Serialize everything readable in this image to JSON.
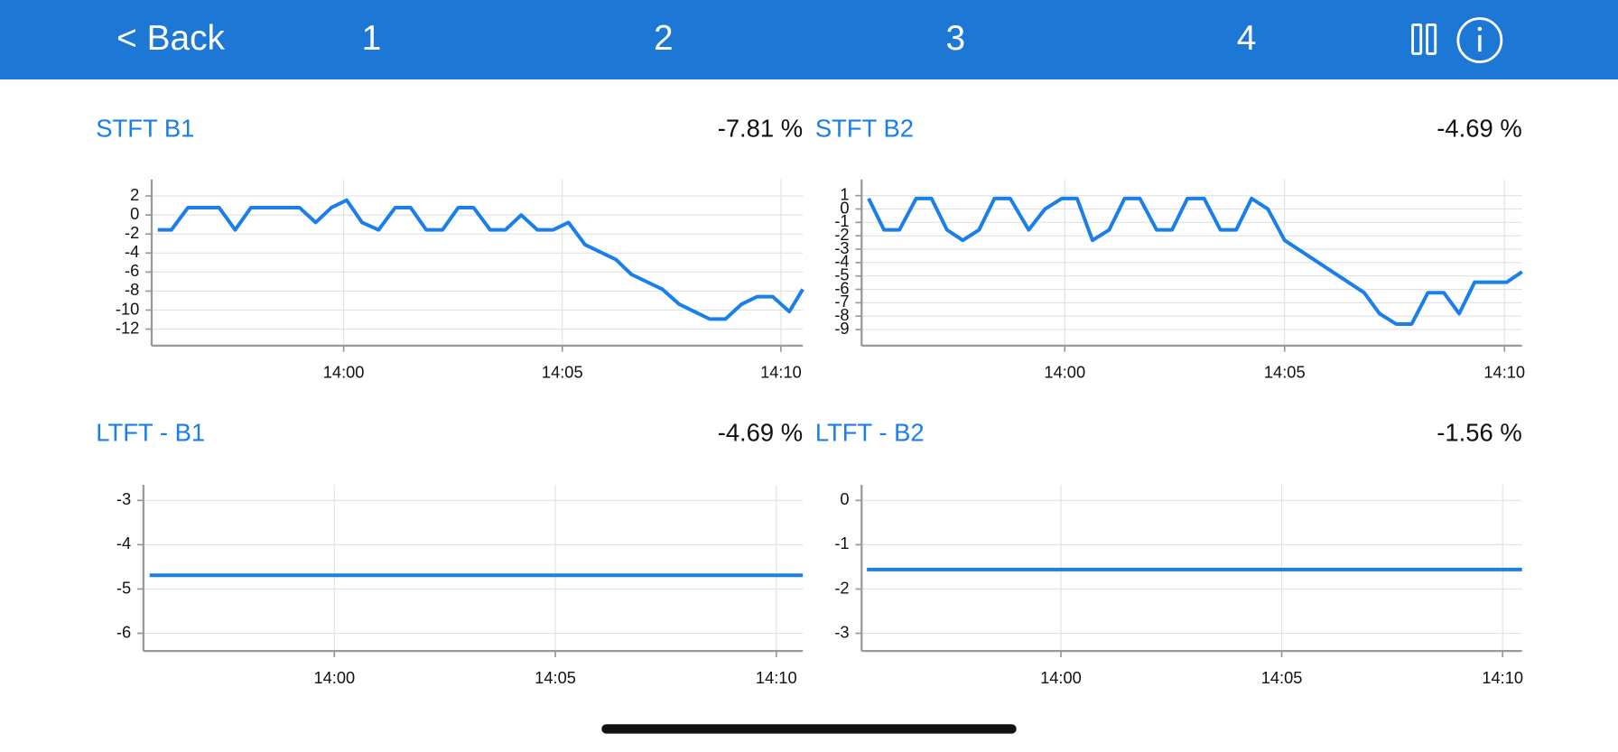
{
  "header": {
    "back": "< Back",
    "tabs": [
      "1",
      "2",
      "3",
      "4"
    ]
  },
  "chart_data": [
    {
      "type": "line",
      "title": "STFT B1",
      "current_value": "-7.81 %",
      "color": "#1a7fe8",
      "grid": true,
      "x": [
        -4.25,
        -3.94,
        -3.56,
        -2.85,
        -2.48,
        -2.12,
        -1.01,
        -0.64,
        -0.28,
        0.07,
        0.42,
        0.8,
        1.18,
        1.53,
        1.89,
        2.26,
        2.62,
        2.97,
        3.35,
        3.7,
        4.06,
        4.43,
        4.79,
        5.14,
        5.52,
        6.23,
        6.58,
        7.29,
        7.67,
        8.37,
        8.73,
        9.1,
        9.46,
        9.81,
        10.19,
        10.5
      ],
      "values": [
        -1.56,
        -1.56,
        0.78,
        0.78,
        -1.56,
        0.78,
        0.78,
        -0.78,
        0.78,
        1.56,
        -0.78,
        -1.56,
        0.78,
        0.78,
        -1.56,
        -1.56,
        0.78,
        0.78,
        -1.56,
        -1.56,
        0,
        -1.56,
        -1.56,
        -0.78,
        -3.13,
        -4.69,
        -6.25,
        -7.81,
        -9.38,
        -10.94,
        -10.94,
        -9.38,
        -8.59,
        -8.59,
        -10.16,
        -7.81
      ],
      "xlim": [
        -4.39,
        10.5
      ],
      "ylim": [
        -13.74,
        3.73
      ],
      "xticks": [
        {
          "value": 0,
          "label": "14:00"
        },
        {
          "value": 5,
          "label": "14:05"
        },
        {
          "value": 10,
          "label": "14:10"
        }
      ],
      "yticks": [
        2,
        0,
        -2,
        -4,
        -6,
        -8,
        -10,
        -12
      ]
    },
    {
      "type": "line",
      "title": "STFT B2",
      "current_value": "-4.69 %",
      "color": "#1a7fe8",
      "grid": true,
      "x": [
        -4.46,
        -4.11,
        -3.76,
        -3.38,
        -3.03,
        -2.68,
        -2.32,
        -1.95,
        -1.6,
        -1.24,
        -0.82,
        -0.45,
        -0.07,
        0.28,
        0.63,
        1.01,
        1.36,
        1.71,
        2.09,
        2.44,
        2.79,
        3.17,
        3.54,
        3.9,
        4.25,
        4.62,
        5.0,
        6.81,
        7.16,
        7.54,
        7.89,
        8.26,
        8.62,
        8.97,
        9.32,
        10.05,
        10.4
      ],
      "values": [
        0.78,
        -1.56,
        -1.56,
        0.78,
        0.78,
        -1.56,
        -2.34,
        -1.56,
        0.78,
        0.78,
        -1.56,
        0,
        0.78,
        0.78,
        -2.34,
        -1.56,
        0.78,
        0.78,
        -1.56,
        -1.56,
        0.78,
        0.78,
        -1.56,
        -1.56,
        0.78,
        0,
        -2.34,
        -6.25,
        -7.81,
        -8.59,
        -8.59,
        -6.25,
        -6.25,
        -7.81,
        -5.47,
        -5.47,
        -4.69
      ],
      "xlim": [
        -4.62,
        10.4
      ],
      "ylim": [
        -10.2,
        2.2
      ],
      "xticks": [
        {
          "value": 0,
          "label": "14:00"
        },
        {
          "value": 5,
          "label": "14:05"
        },
        {
          "value": 10,
          "label": "14:10"
        }
      ],
      "yticks": [
        1,
        0,
        -1,
        -2,
        -3,
        -4,
        -5,
        -6,
        -7,
        -8,
        -9
      ]
    },
    {
      "type": "line",
      "title": "LTFT - B1",
      "current_value": "-4.69 %",
      "color": "#1a7fe8",
      "grid": true,
      "x": [
        -4.18,
        10.6
      ],
      "values": [
        -4.69,
        -4.69
      ],
      "xlim": [
        -4.32,
        10.6
      ],
      "ylim": [
        -6.4,
        -2.65
      ],
      "xticks": [
        {
          "value": 0,
          "label": "14:00"
        },
        {
          "value": 5,
          "label": "14:05"
        },
        {
          "value": 10,
          "label": "14:10"
        }
      ],
      "yticks": [
        -3,
        -4,
        -5,
        -6
      ]
    },
    {
      "type": "line",
      "title": "LTFT - B2",
      "current_value": "-1.56 %",
      "color": "#1a7fe8",
      "grid": true,
      "x": [
        -4.39,
        10.44
      ],
      "values": [
        -1.56,
        -1.56
      ],
      "xlim": [
        -4.51,
        10.44
      ],
      "ylim": [
        -3.4,
        0.35
      ],
      "xticks": [
        {
          "value": 0,
          "label": "14:00"
        },
        {
          "value": 5,
          "label": "14:05"
        },
        {
          "value": 10,
          "label": "14:10"
        }
      ],
      "yticks": [
        0,
        -1,
        -2,
        -3
      ]
    }
  ]
}
